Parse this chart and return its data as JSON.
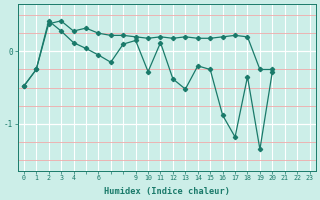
{
  "xlabel": "Humidex (Indice chaleur)",
  "bg_color": "#cceee8",
  "line_color": "#1a7a6a",
  "grid_color_white": "#ffffff",
  "grid_color_pink": "#f0aaaa",
  "series_data": [
    {
      "x": [
        0,
        1,
        2,
        3,
        4,
        5,
        6,
        7,
        8,
        9,
        10,
        11,
        12,
        13,
        14,
        15,
        16,
        17,
        18,
        19,
        20,
        21,
        22,
        23
      ],
      "y": [
        -0.48,
        -0.25,
        0.38,
        0.42,
        0.28,
        0.32,
        0.25,
        0.22,
        0.22,
        0.2,
        0.18,
        0.2,
        0.18,
        0.2,
        0.18,
        0.18,
        0.2,
        0.22,
        0.2,
        -0.25,
        -0.25,
        null,
        null,
        null
      ]
    },
    {
      "x": [
        0,
        1,
        2,
        3,
        4,
        5,
        6,
        7,
        8,
        9,
        10,
        11,
        12,
        13,
        14,
        15,
        16,
        17,
        18,
        19,
        20,
        21,
        22,
        23
      ],
      "y": [
        -0.48,
        -0.25,
        0.42,
        0.28,
        0.12,
        0.04,
        -0.05,
        -0.15,
        0.1,
        0.15,
        -0.28,
        0.12,
        -0.38,
        -0.52,
        -0.2,
        -0.25,
        -0.88,
        -1.18,
        -0.35,
        -1.35,
        -0.28,
        null,
        null,
        null
      ]
    }
  ],
  "xtick_labels": [
    "0",
    "1",
    "2",
    "3",
    "4",
    "",
    "6",
    "",
    "",
    "9",
    "10",
    "11",
    "12",
    "13",
    "14",
    "15",
    "16",
    "17",
    "18",
    "19",
    "20",
    "21",
    "22",
    "23"
  ],
  "xtick_positions": [
    0,
    1,
    2,
    3,
    4,
    5,
    6,
    7,
    8,
    9,
    10,
    11,
    12,
    13,
    14,
    15,
    16,
    17,
    18,
    19,
    20,
    21,
    22,
    23
  ],
  "yticks": [
    0,
    -1
  ],
  "ylim": [
    -1.65,
    0.65
  ],
  "xlim": [
    -0.5,
    23.5
  ]
}
